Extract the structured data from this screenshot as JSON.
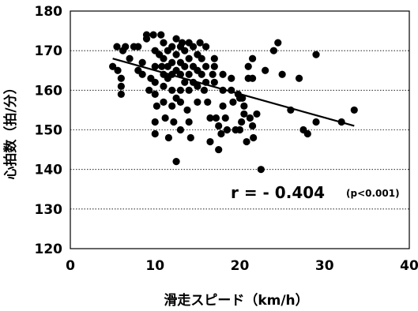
{
  "chart_data": {
    "type": "scatter",
    "xlabel": "滑走スピード（km/h）",
    "ylabel": "心拍数（拍/分）",
    "xlim": [
      0,
      40
    ],
    "ylim": [
      120,
      180
    ],
    "x_ticks": [
      "0",
      "10",
      "20",
      "30",
      "40"
    ],
    "y_ticks": [
      "120",
      "130",
      "140",
      "150",
      "160",
      "170",
      "180"
    ],
    "grid": "horizontal dotted",
    "annotation": {
      "r_text": "r = - 0.404",
      "p_text": "(p<0.001)"
    },
    "trendline": {
      "x": [
        5,
        33.5
      ],
      "y": [
        168,
        151
      ]
    },
    "points": [
      [
        5,
        166
      ],
      [
        5.5,
        171
      ],
      [
        5.6,
        165
      ],
      [
        6,
        161
      ],
      [
        6,
        163
      ],
      [
        6,
        159
      ],
      [
        6.2,
        170
      ],
      [
        6.5,
        171
      ],
      [
        7,
        168
      ],
      [
        7.5,
        171
      ],
      [
        8,
        171
      ],
      [
        8,
        165
      ],
      [
        8.5,
        164
      ],
      [
        8.5,
        167
      ],
      [
        9,
        174
      ],
      [
        9,
        173
      ],
      [
        9.3,
        160
      ],
      [
        9.5,
        163
      ],
      [
        9.8,
        174
      ],
      [
        10,
        170
      ],
      [
        10,
        166
      ],
      [
        10,
        162
      ],
      [
        10,
        159
      ],
      [
        10,
        152
      ],
      [
        10,
        149
      ],
      [
        10.2,
        156
      ],
      [
        10.5,
        169
      ],
      [
        10.7,
        174
      ],
      [
        10.8,
        166
      ],
      [
        11,
        172
      ],
      [
        11,
        168
      ],
      [
        11,
        164
      ],
      [
        11,
        161
      ],
      [
        11,
        157
      ],
      [
        11.2,
        153
      ],
      [
        11.5,
        170
      ],
      [
        11.5,
        166
      ],
      [
        11.5,
        163
      ],
      [
        11.6,
        148
      ],
      [
        12,
        171
      ],
      [
        12,
        167
      ],
      [
        12,
        164
      ],
      [
        12,
        160
      ],
      [
        12,
        156
      ],
      [
        12.2,
        152
      ],
      [
        12.5,
        173
      ],
      [
        12.5,
        169
      ],
      [
        12.5,
        165
      ],
      [
        12.5,
        158
      ],
      [
        12.5,
        142
      ],
      [
        13,
        171
      ],
      [
        13,
        167
      ],
      [
        13,
        164
      ],
      [
        13,
        160
      ],
      [
        13,
        157
      ],
      [
        13,
        150
      ],
      [
        13.2,
        172
      ],
      [
        13.5,
        170
      ],
      [
        13.5,
        166
      ],
      [
        13.5,
        162
      ],
      [
        13.8,
        155
      ],
      [
        14,
        172
      ],
      [
        14,
        168
      ],
      [
        14,
        164
      ],
      [
        14,
        160
      ],
      [
        14,
        152
      ],
      [
        14.2,
        148
      ],
      [
        14.5,
        171
      ],
      [
        14.5,
        166
      ],
      [
        14.5,
        162
      ],
      [
        15,
        169
      ],
      [
        15,
        165
      ],
      [
        15,
        161
      ],
      [
        15,
        157
      ],
      [
        15.3,
        172
      ],
      [
        15.5,
        168
      ],
      [
        15.5,
        164
      ],
      [
        15.8,
        160
      ],
      [
        16,
        171
      ],
      [
        16,
        166
      ],
      [
        16,
        162
      ],
      [
        16.2,
        157
      ],
      [
        16.5,
        153
      ],
      [
        16.5,
        147
      ],
      [
        16.8,
        164
      ],
      [
        17,
        168
      ],
      [
        17,
        166
      ],
      [
        17,
        162
      ],
      [
        17.2,
        153
      ],
      [
        17.5,
        151
      ],
      [
        17.5,
        145
      ],
      [
        17.8,
        149
      ],
      [
        18,
        164
      ],
      [
        18,
        160
      ],
      [
        18,
        156
      ],
      [
        18.3,
        153
      ],
      [
        18.5,
        150
      ],
      [
        19,
        163
      ],
      [
        19,
        160
      ],
      [
        19.2,
        157
      ],
      [
        19.5,
        150
      ],
      [
        19.8,
        159
      ],
      [
        20,
        158
      ],
      [
        20,
        150
      ],
      [
        20.2,
        152
      ],
      [
        20.3,
        158
      ],
      [
        20.5,
        156
      ],
      [
        20.5,
        154
      ],
      [
        20.8,
        147
      ],
      [
        21,
        166
      ],
      [
        21,
        163
      ],
      [
        21.2,
        153
      ],
      [
        21.5,
        168
      ],
      [
        21.5,
        163
      ],
      [
        21.5,
        151
      ],
      [
        21.6,
        148
      ],
      [
        22,
        154
      ],
      [
        22.5,
        140
      ],
      [
        23,
        165
      ],
      [
        24,
        170
      ],
      [
        24.5,
        172
      ],
      [
        25,
        164
      ],
      [
        26,
        155
      ],
      [
        27,
        163
      ],
      [
        27.5,
        150
      ],
      [
        28,
        149
      ],
      [
        29,
        169
      ],
      [
        29,
        152
      ],
      [
        32,
        152
      ],
      [
        33.5,
        155
      ]
    ]
  }
}
